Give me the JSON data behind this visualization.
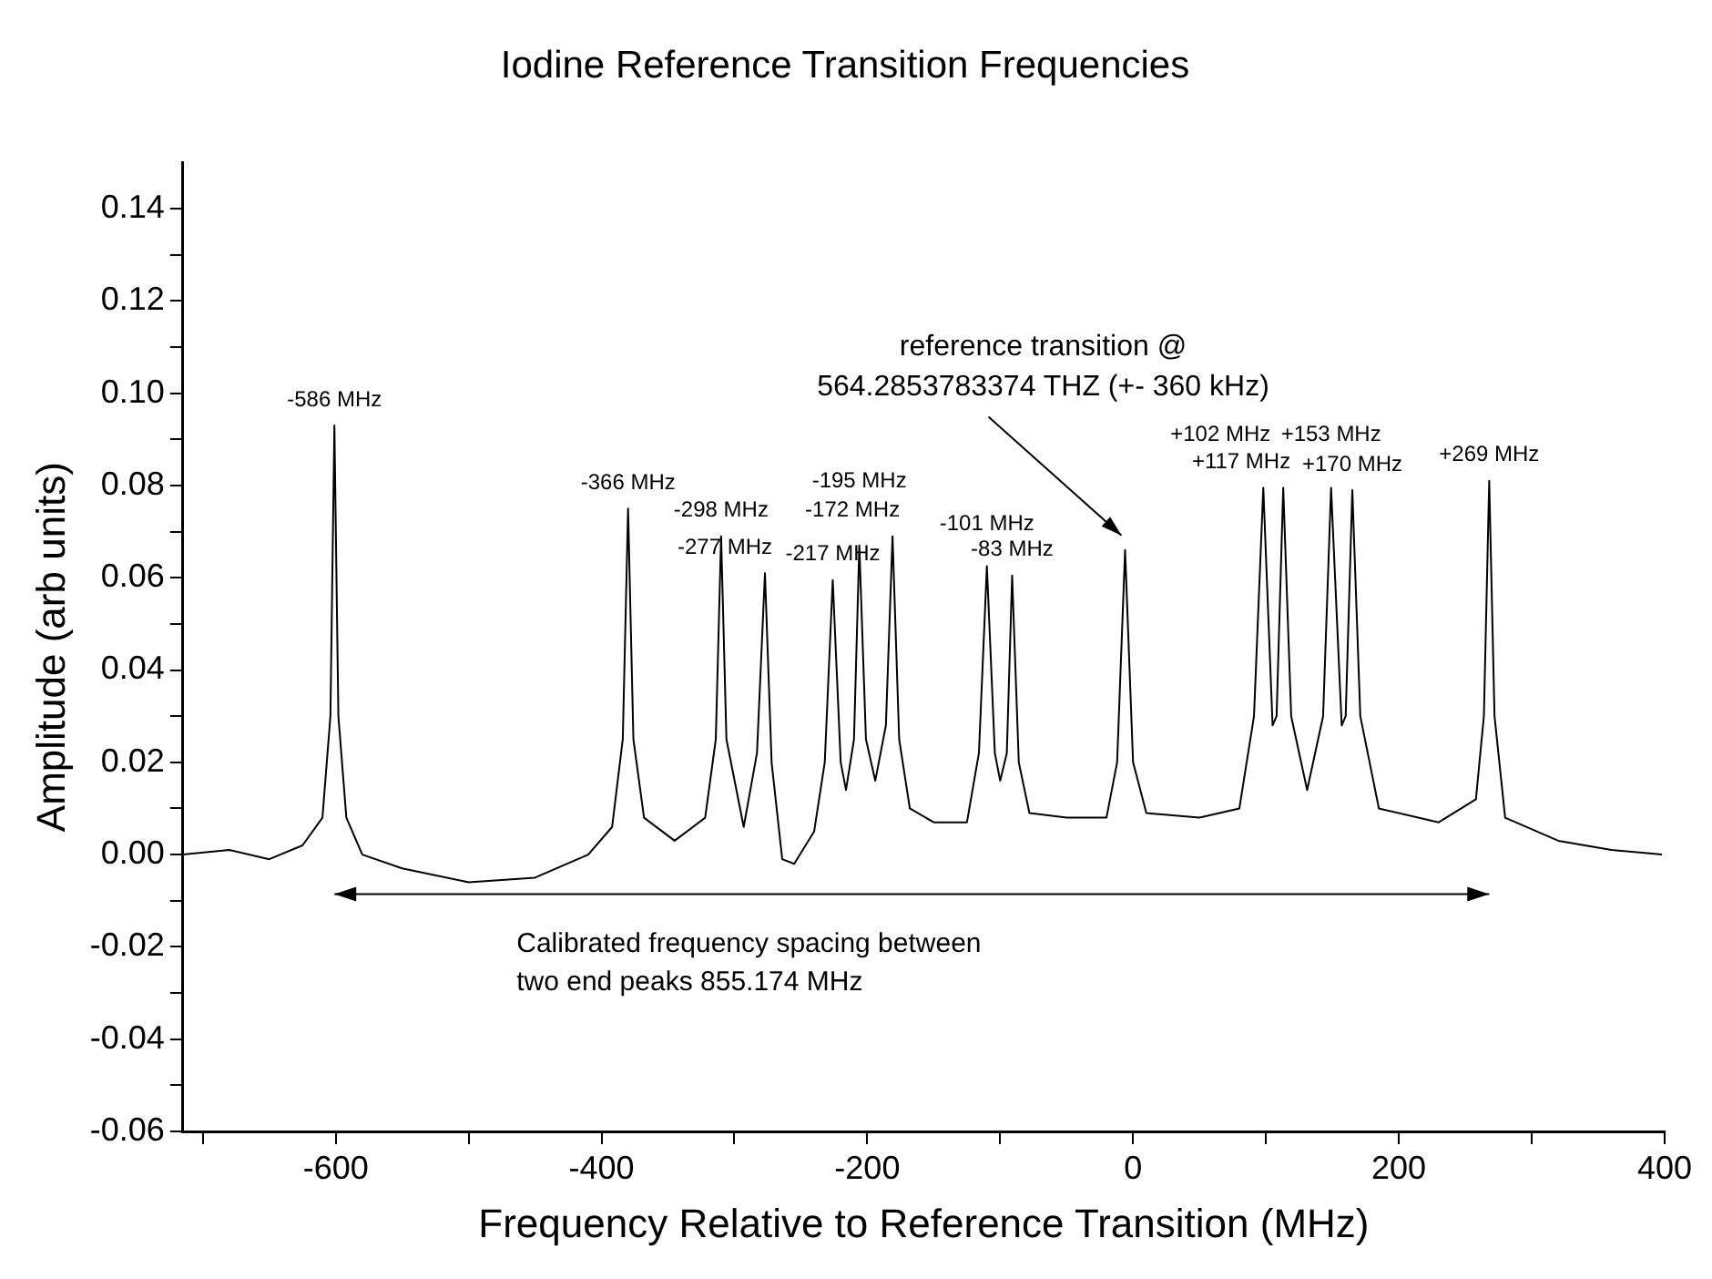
{
  "chart_data": {
    "type": "line",
    "title": "Iodine Reference Transition Frequencies",
    "xlabel": "Frequency Relative to Reference Transition (MHz)",
    "ylabel": "Amplitude (arb units)",
    "x": [
      -715,
      -680,
      -650,
      -625,
      -610,
      -604,
      -601,
      -598,
      -592,
      -580,
      -550,
      -500,
      -450,
      -410,
      -392,
      -384,
      -380,
      -376,
      -368,
      -345,
      -322,
      -314,
      -310,
      -306,
      -293,
      -283,
      -277,
      -272,
      -264,
      -255,
      -240,
      -232,
      -226,
      -220,
      -216,
      -210,
      -206,
      -201,
      -194,
      -186,
      -181,
      -176,
      -168,
      -150,
      -125,
      -116,
      -110,
      -104,
      -100,
      -95,
      -91,
      -86,
      -78,
      -50,
      -20,
      -12,
      -6,
      0,
      10,
      50,
      80,
      91,
      98,
      105,
      108,
      113,
      119,
      131,
      143,
      149,
      157,
      160,
      165,
      171,
      185,
      230,
      258,
      264,
      268,
      272,
      280,
      320,
      360,
      398
    ],
    "series": [
      {
        "color": "#000000",
        "values": [
          0.0,
          0.001,
          -0.001,
          0.002,
          0.008,
          0.03,
          0.093,
          0.03,
          0.008,
          0.0,
          -0.003,
          -0.006,
          -0.005,
          0.0,
          0.006,
          0.025,
          0.075,
          0.025,
          0.008,
          0.003,
          0.008,
          0.025,
          0.069,
          0.025,
          0.006,
          0.022,
          0.061,
          0.02,
          -0.001,
          -0.002,
          0.005,
          0.02,
          0.0595,
          0.02,
          0.014,
          0.025,
          0.067,
          0.025,
          0.016,
          0.028,
          0.069,
          0.025,
          0.01,
          0.007,
          0.007,
          0.022,
          0.0625,
          0.022,
          0.016,
          0.022,
          0.0605,
          0.02,
          0.009,
          0.008,
          0.008,
          0.02,
          0.066,
          0.02,
          0.009,
          0.008,
          0.01,
          0.03,
          0.0795,
          0.028,
          0.03,
          0.0795,
          0.03,
          0.014,
          0.03,
          0.0795,
          0.028,
          0.03,
          0.079,
          0.03,
          0.01,
          0.007,
          0.012,
          0.03,
          0.081,
          0.03,
          0.008,
          0.003,
          0.001,
          0.0
        ]
      }
    ],
    "xlim": [
      -715,
      400
    ],
    "xticks": [
      {
        "value": -700,
        "label": null
      },
      -600,
      {
        "value": -500,
        "label": null
      },
      -400,
      {
        "value": -300,
        "label": null
      },
      -200,
      {
        "value": -100,
        "label": null
      },
      0,
      {
        "value": 100,
        "label": null
      },
      200,
      {
        "value": 300,
        "label": null
      },
      400
    ],
    "ylim": [
      -0.06,
      0.15
    ],
    "yticks": [
      -0.06,
      {
        "value": -0.05,
        "label": null
      },
      -0.04,
      {
        "value": -0.03,
        "label": null
      },
      -0.02,
      {
        "value": -0.01,
        "label": null
      },
      {
        "value": 0,
        "label": "0.00"
      },
      {
        "value": 0.01,
        "label": null
      },
      0.02,
      {
        "value": 0.03,
        "label": null
      },
      0.04,
      {
        "value": 0.05,
        "label": null
      },
      0.06,
      {
        "value": 0.07,
        "label": null
      },
      0.08,
      {
        "value": 0.09,
        "label": null
      },
      {
        "value": 0.1,
        "label": "0.10"
      },
      {
        "value": 0.11,
        "label": null
      },
      0.12,
      {
        "value": 0.13,
        "label": null
      },
      0.14
    ],
    "grid": false,
    "annotations": [
      {
        "text": "-586 MHz",
        "x": -601,
        "y": 0.093
      },
      {
        "text": "-366 MHz",
        "x": -380,
        "y": 0.075
      },
      {
        "text": "-298 MHz",
        "x": -310,
        "y": 0.069
      },
      {
        "text": "-277 MHz",
        "x": -277,
        "y": 0.061
      },
      {
        "text": "-217 MHz",
        "x": -226,
        "y": 0.0595
      },
      {
        "text": "-195 MHz",
        "x": -206,
        "y": 0.067
      },
      {
        "text": "-172 MHz",
        "x": -181,
        "y": 0.069
      },
      {
        "text": "-101 MHz",
        "x": -110,
        "y": 0.0625
      },
      {
        "text": "-83 MHz",
        "x": -91,
        "y": 0.0605
      },
      {
        "text": "reference transition @\n564.2853783374 THZ (+- 360 kHz)",
        "x": -6,
        "y": 0.066
      },
      {
        "text": "+102 MHz",
        "x": 98,
        "y": 0.0795
      },
      {
        "text": "+117 MHz",
        "x": 113,
        "y": 0.0795
      },
      {
        "text": "+153 MHz",
        "x": 149,
        "y": 0.0795
      },
      {
        "text": "+170 MHz",
        "x": 165,
        "y": 0.079
      },
      {
        "text": "+269 MHz",
        "x": 268,
        "y": 0.081
      },
      "Calibrated frequency spacing between\ntwo end peaks 855.174 MHz"
    ]
  }
}
